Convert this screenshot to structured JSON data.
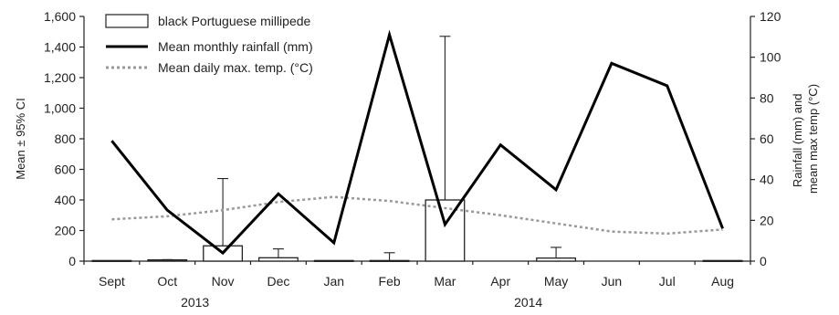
{
  "chart_data": {
    "type": "bar",
    "categories": [
      "Sept",
      "Oct",
      "Nov",
      "Dec",
      "Jan",
      "Feb",
      "Mar",
      "Apr",
      "May",
      "Jun",
      "Jul",
      "Aug"
    ],
    "year_labels": [
      {
        "label": "2013",
        "from": "Sept",
        "to": "Dec"
      },
      {
        "label": "2014",
        "from": "Jan",
        "to": "Aug"
      }
    ],
    "ylabel": "Mean ± 95% CI",
    "y2label_lines": [
      "Rainfall (mm) and",
      "mean max temp (°C)"
    ],
    "ylim": [
      0,
      1600
    ],
    "yticks": [
      "0",
      "200",
      "400",
      "600",
      "800",
      "1,000",
      "1,200",
      "1,400",
      "1,600"
    ],
    "y2lim": [
      0,
      120
    ],
    "y2ticks": [
      "0",
      "20",
      "40",
      "60",
      "80",
      "100",
      "120"
    ],
    "legend_position": "top-left",
    "series": [
      {
        "name": "black Portuguese millipede",
        "kind": "bar",
        "axis": "left",
        "values": [
          4,
          8,
          100,
          22,
          4,
          4,
          400,
          0,
          20,
          0,
          0,
          4
        ],
        "ci_upper": [
          null,
          10,
          540,
          80,
          null,
          55,
          1470,
          null,
          90,
          null,
          null,
          null
        ],
        "color": "#ffffff"
      },
      {
        "name": "Mean monthly rainfall (mm)",
        "kind": "line",
        "axis": "right",
        "values": [
          59,
          25,
          4,
          33,
          9,
          111,
          18,
          57,
          35,
          97,
          86,
          16
        ],
        "color": "#000000"
      },
      {
        "name": "Mean daily max. temp. (°C)",
        "kind": "dotted-line",
        "axis": "right",
        "values": [
          20.5,
          22,
          25,
          29,
          31.5,
          29.5,
          26,
          22.5,
          18.5,
          14.5,
          13.5,
          15.5
        ],
        "color": "#999999"
      }
    ]
  }
}
